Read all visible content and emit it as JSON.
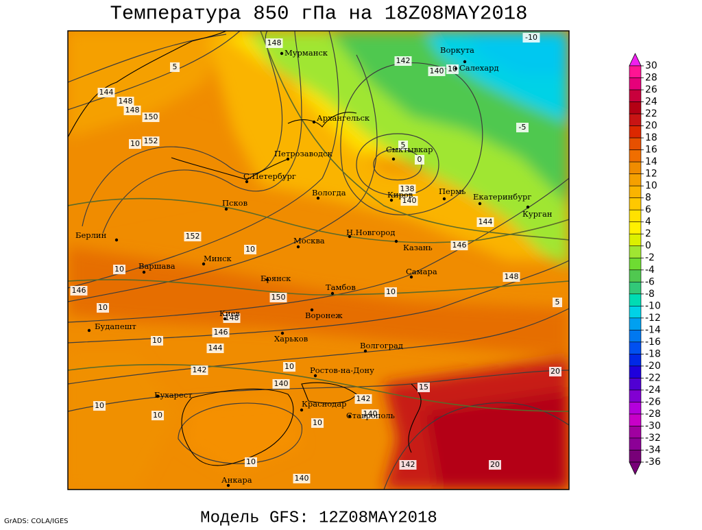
{
  "title": "Температура 850 гПа на 18Z08MAY2018",
  "subtitle": "Модель GFS: 12Z08MAY2018",
  "credit": "GrADS: COLA/IGES",
  "cities": [
    "Мурманск",
    "Воркута",
    "Салехард",
    "Архангельск",
    "Петрозаводск",
    "Сыктывкар",
    "С.Петербург",
    "Вологда",
    "Киров",
    "Пермь",
    "Екатеринбург",
    "Курган",
    "Псков",
    "Берлин",
    "Н.Новгород",
    "Москва",
    "Казань",
    "Минск",
    "Варшава",
    "Самара",
    "Брянск",
    "Тамбов",
    "Киев",
    "Воронеж",
    "Будапешт",
    "Харьков",
    "Волгоград",
    "Ростов-на-Дону",
    "Бухарест",
    "Краснодар",
    "Ставрополь",
    "Анкара"
  ],
  "contour_labels": [
    148,
    142,
    140,
    10,
    -10,
    144,
    148,
    148,
    150,
    152,
    10,
    5,
    5,
    0,
    138,
    140,
    144,
    146,
    148,
    152,
    10,
    10,
    146,
    10,
    150,
    10,
    148,
    146,
    144,
    10,
    142,
    10,
    140,
    142,
    140,
    10,
    10,
    10,
    10,
    140,
    142,
    20,
    20,
    5,
    -5,
    15
  ],
  "colorbar": {
    "levels": [
      30,
      28,
      26,
      24,
      22,
      20,
      18,
      16,
      14,
      12,
      10,
      8,
      6,
      4,
      2,
      0,
      -2,
      -4,
      -6,
      -8,
      -10,
      -12,
      -14,
      -16,
      -18,
      -20,
      -22,
      -24,
      -26,
      -28,
      -30,
      -32,
      -34,
      -36
    ],
    "colors": [
      "#f020f0",
      "#ff1493",
      "#e6007a",
      "#c8003c",
      "#b40014",
      "#c81414",
      "#dc2800",
      "#e65000",
      "#f06e00",
      "#f08c00",
      "#f5a000",
      "#fab400",
      "#ffc800",
      "#ffe100",
      "#fff000",
      "#dcf000",
      "#a0e632",
      "#6edc32",
      "#50c850",
      "#32c878",
      "#00dcb4",
      "#00d2e6",
      "#00a0f0",
      "#0078f0",
      "#0050f0",
      "#0028e6",
      "#1e00dc",
      "#5000d2",
      "#8200d2",
      "#b400dc",
      "#c800c8",
      "#a000a0",
      "#8c0096",
      "#780078",
      "#780078"
    ]
  }
}
